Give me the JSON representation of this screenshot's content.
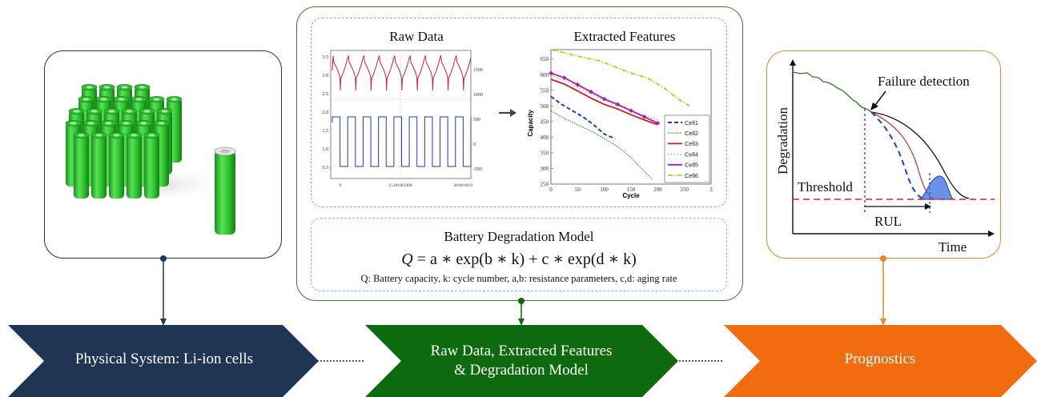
{
  "raw_data": {
    "title": "Raw Data",
    "left_ticks": [
      "3.5",
      "3.0",
      "2.5",
      "2.0",
      "1.5",
      "1.0",
      "0.5"
    ],
    "right_ticks": [
      "1500",
      "1000",
      "500",
      "0",
      "-500"
    ],
    "x_ticks": [
      "0",
      "15:00:00.000",
      "30:00:00.0"
    ]
  },
  "features": {
    "title": "Extracted Features",
    "chart_data": {
      "type": "line",
      "ylabel": "Capacity",
      "xlabel": "Cycle",
      "xlim": [
        0,
        300
      ],
      "ylim": [
        250,
        680
      ],
      "x_ticks": [
        "0",
        "50",
        "100",
        "150",
        "200",
        "250",
        "3"
      ],
      "y_ticks": [
        "650",
        "600",
        "550",
        "500",
        "450",
        "400",
        "350",
        "300",
        "250"
      ],
      "series": [
        {
          "name": "Cell1",
          "color": "#1f3fc8",
          "x": [
            0,
            20,
            40,
            60,
            80,
            100,
            120
          ],
          "y": [
            530,
            505,
            485,
            465,
            440,
            410,
            395
          ]
        },
        {
          "name": "Cell2",
          "color": "#2e8b2e",
          "x": [
            0,
            25,
            50,
            75,
            100,
            125,
            150,
            175,
            190
          ],
          "y": [
            485,
            460,
            440,
            420,
            395,
            370,
            335,
            290,
            265
          ]
        },
        {
          "name": "Cell3",
          "color": "#d0201c",
          "x": [
            0,
            25,
            50,
            75,
            100,
            125,
            150,
            175,
            200
          ],
          "y": [
            585,
            570,
            548,
            525,
            505,
            490,
            472,
            455,
            440
          ]
        },
        {
          "name": "Cell4",
          "color": "#27a9b0",
          "x": [
            0,
            25,
            50,
            75,
            100,
            125,
            150,
            175,
            200
          ],
          "y": [
            598,
            582,
            560,
            538,
            518,
            500,
            485,
            470,
            455
          ]
        },
        {
          "name": "Cell5",
          "color": "#b21db2",
          "x": [
            0,
            25,
            50,
            75,
            100,
            125,
            150,
            175,
            200
          ],
          "y": [
            605,
            590,
            568,
            545,
            522,
            505,
            485,
            465,
            445
          ]
        },
        {
          "name": "Cell6",
          "color": "#c9c61b",
          "x": [
            0,
            30,
            60,
            90,
            120,
            150,
            180,
            210,
            240,
            260
          ],
          "y": [
            680,
            668,
            655,
            645,
            625,
            605,
            590,
            560,
            520,
            500
          ]
        }
      ]
    }
  },
  "model": {
    "title": "Battery Degradation Model",
    "eq_q": "Q",
    "eq_rhs": "= a ∗ exp(b ∗ k) + c ∗ exp(d ∗ k)",
    "caption": "Q: Battery capacity, k: cycle number, a,b: resistance parameters, c,d: aging rate"
  },
  "prognostics_chart": {
    "failure_label": "Failure detection",
    "y_label": "Degradation",
    "threshold_label": "Threshold",
    "rul_label": "RUL",
    "x_label": "Time"
  },
  "stages": [
    {
      "label": "Physical System: Li-ion cells",
      "color": "#1e3554"
    },
    {
      "label_line1": "Raw Data, Extracted Features",
      "label_line2": "& Degradation Model",
      "color": "#0e6a0e"
    },
    {
      "label": "Prognostics",
      "color": "#f26b0f"
    }
  ]
}
